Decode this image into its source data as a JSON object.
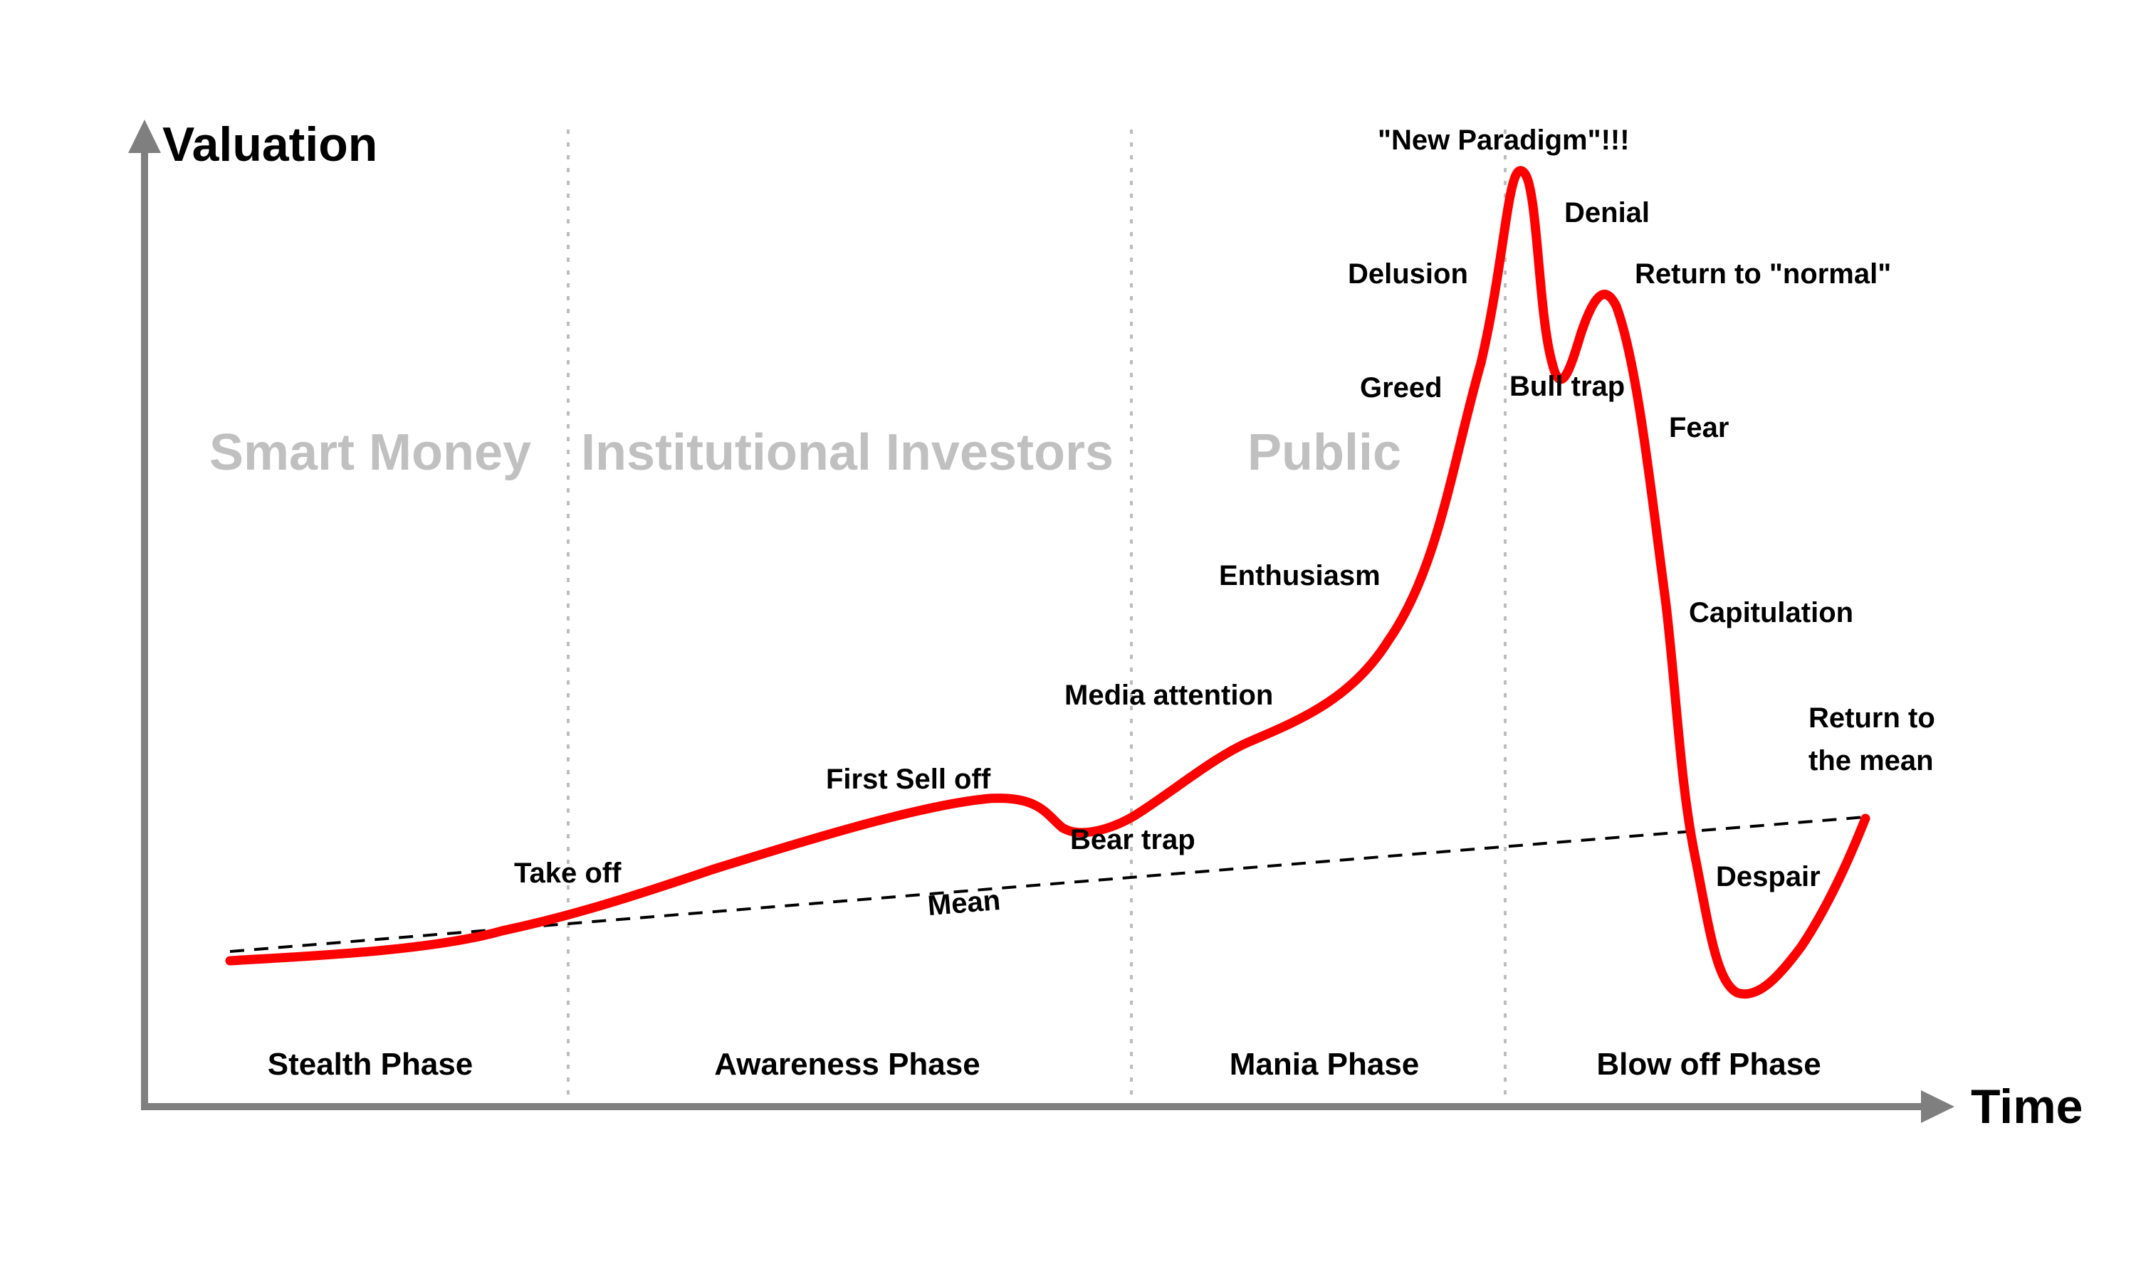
{
  "axes": {
    "y_label": "Valuation",
    "x_label": "Time"
  },
  "audiences": [
    "Smart Money",
    "Institutional Investors",
    "Public"
  ],
  "phases": [
    "Stealth Phase",
    "Awareness Phase",
    "Mania Phase",
    "Blow off Phase"
  ],
  "mean_label": "Mean",
  "annotations": {
    "take_off": "Take off",
    "first_sell_off": "First Sell off",
    "bear_trap": "Bear trap",
    "media_attention": "Media attention",
    "enthusiasm": "Enthusiasm",
    "greed": "Greed",
    "delusion": "Delusion",
    "new_paradigm": "\"New Paradigm\"!!!",
    "denial": "Denial",
    "return_to_normal": "Return to \"normal\"",
    "bull_trap": "Bull trap",
    "fear": "Fear",
    "capitulation": "Capitulation",
    "despair": "Despair",
    "return_to_mean_line1": "Return to",
    "return_to_mean_line2": "the mean"
  },
  "colors": {
    "curve": "#ff0000",
    "axis": "#7f7f7f",
    "audience_text": "#c0c0c0",
    "divider": "#bdbdbd",
    "mean_line": "#000000"
  }
}
